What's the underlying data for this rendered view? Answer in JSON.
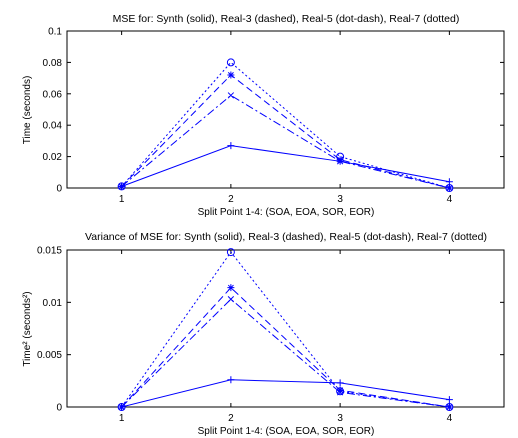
{
  "chart_data": [
    {
      "type": "line",
      "title": "MSE for: Synth (solid), Real-3 (dashed), Real-5 (dot-dash), Real-7 (dotted)",
      "xlabel": "Split Point 1-4: (SOA, EOA, SOR, EOR)",
      "ylabel": "Time (seconds)",
      "x": [
        1,
        2,
        3,
        4
      ],
      "xlim": [
        0.5,
        4.5
      ],
      "ylim": [
        0,
        0.1
      ],
      "xticks": [
        "1",
        "2",
        "3",
        "4"
      ],
      "yticks": [
        "0",
        "0.02",
        "0.04",
        "0.06",
        "0.08",
        "0.1"
      ],
      "color": "#0000ff",
      "grid": false,
      "series": [
        {
          "values": [
            0.001,
            0.027,
            0.017,
            0.004
          ],
          "dash": "solid",
          "marker": "plus"
        },
        {
          "values": [
            0.001,
            0.072,
            0.018,
            0.0
          ],
          "dash": "dashed",
          "marker": "star"
        },
        {
          "values": [
            0.001,
            0.059,
            0.017,
            0.0
          ],
          "dash": "dot-dash",
          "marker": "x"
        },
        {
          "values": [
            0.001,
            0.08,
            0.02,
            0.0
          ],
          "dash": "dotted",
          "marker": "circle"
        }
      ]
    },
    {
      "type": "line",
      "title": "Variance of MSE for: Synth (solid), Real-3 (dashed), Real-5 (dot-dash), Real-7 (dotted)",
      "xlabel": "Split Point 1-4: (SOA, EOA, SOR, EOR)",
      "ylabel": "Time² (seconds²)",
      "x": [
        1,
        2,
        3,
        4
      ],
      "xlim": [
        0.5,
        4.5
      ],
      "ylim": [
        0,
        0.015
      ],
      "xticks": [
        "1",
        "2",
        "3",
        "4"
      ],
      "yticks": [
        "0",
        "0.005",
        "0.01",
        "0.015"
      ],
      "color": "#0000ff",
      "grid": false,
      "series": [
        {
          "values": [
            0.0,
            0.0026,
            0.0023,
            0.0007
          ],
          "dash": "solid",
          "marker": "plus"
        },
        {
          "values": [
            0.0,
            0.0114,
            0.0016,
            0.0
          ],
          "dash": "dashed",
          "marker": "star"
        },
        {
          "values": [
            0.0,
            0.0103,
            0.0014,
            0.0
          ],
          "dash": "dot-dash",
          "marker": "x"
        },
        {
          "values": [
            0.0,
            0.0148,
            0.0015,
            0.0
          ],
          "dash": "dotted",
          "marker": "circle"
        }
      ]
    }
  ]
}
